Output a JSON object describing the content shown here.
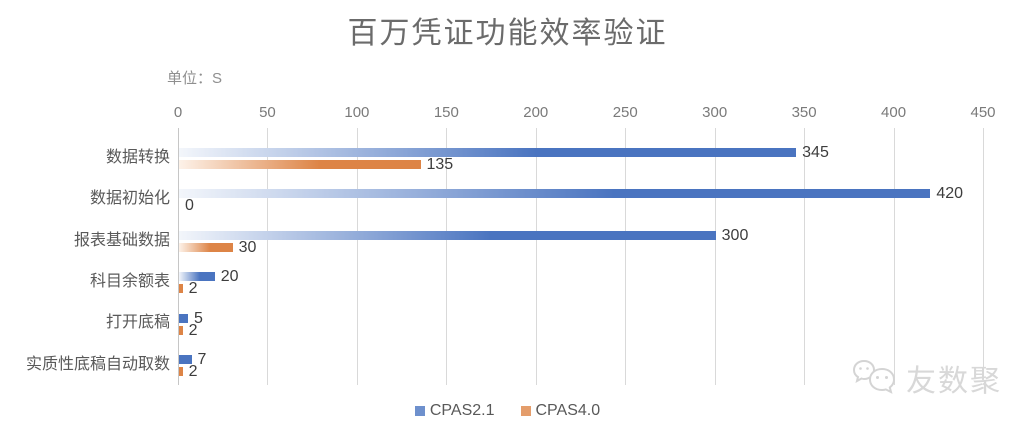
{
  "chart_data": {
    "type": "bar",
    "orientation": "horizontal",
    "title": "百万凭证功能效率验证",
    "unit_label": "单位：S",
    "categories": [
      "数据转换",
      "数据初始化",
      "报表基础数据",
      "科目余额表",
      "打开底稿",
      "实质性底稿自动取数"
    ],
    "series": [
      {
        "name": "CPAS2.1",
        "color": "#4a74c0",
        "light_color": "#f3f6fb",
        "values": [
          345,
          420,
          300,
          20,
          5,
          7
        ]
      },
      {
        "name": "CPAS4.0",
        "color": "#dd8446",
        "light_color": "#fdf2e9",
        "values": [
          135,
          0,
          30,
          2,
          2,
          2
        ]
      }
    ],
    "xlim": [
      0,
      450
    ],
    "x_ticks": [
      0,
      50,
      100,
      150,
      200,
      250,
      300,
      350,
      400,
      450
    ],
    "grid": true,
    "gridline_color": "#d9d9d9",
    "legend_position": "bottom",
    "title_color": "#6b6b6b"
  },
  "watermark": {
    "text": "友数聚",
    "icon": "wechat-icon"
  }
}
